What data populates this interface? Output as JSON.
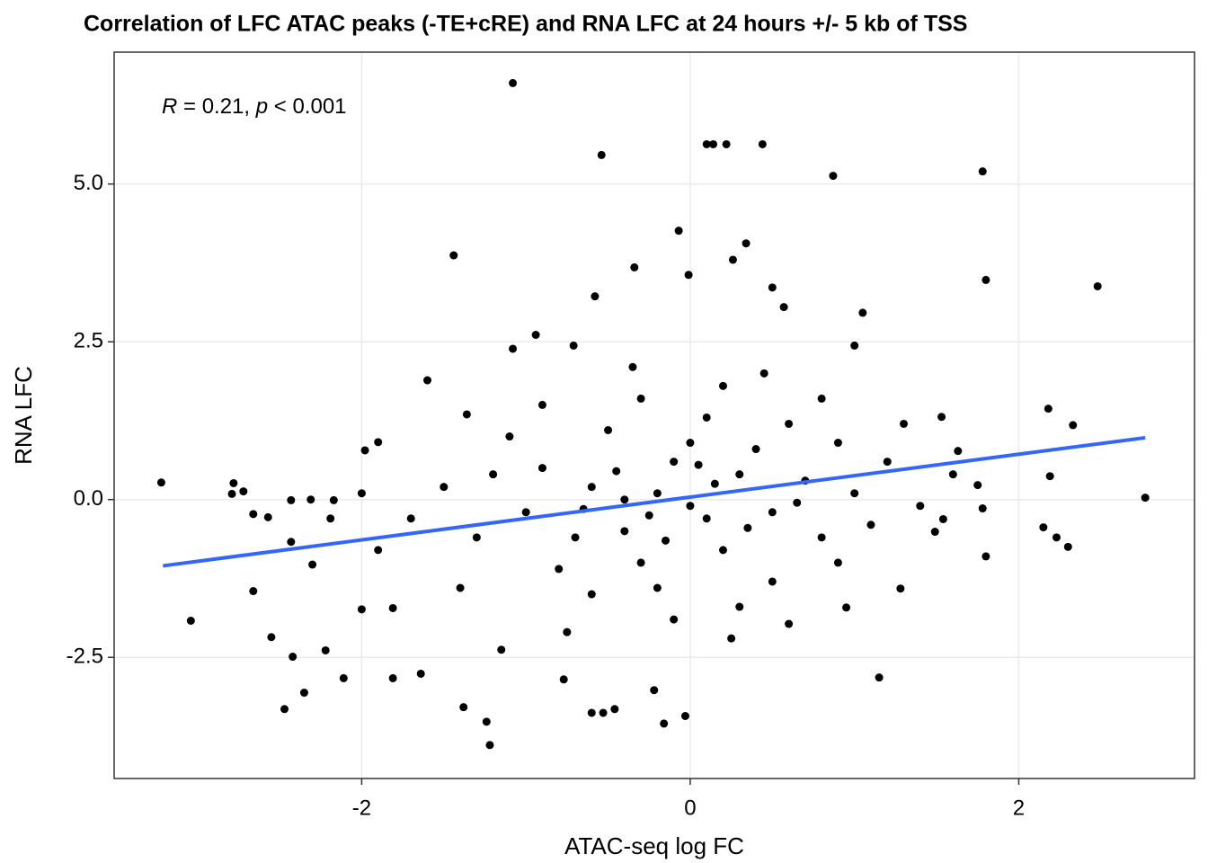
{
  "chart_data": {
    "type": "scatter",
    "title": "Correlation of LFC ATAC peaks (-TE+cRE) and RNA LFC at 24 hours +/- 5 kb of TSS",
    "x_label": "ATAC-seq log FC",
    "y_label": "RNA LFC",
    "annotation": [
      "R",
      " = 0.21, ",
      "p",
      " < 0.001"
    ],
    "color": "#000000",
    "grid": true,
    "xlim": [
      -3.507,
      3.07
    ],
    "ylim": [
      -4.42,
      7.09
    ],
    "xticks": [
      -2,
      0,
      2
    ],
    "yticks": [
      {
        "value": -2.5,
        "label": "-2.5"
      },
      {
        "value": 0,
        "label": "0.0"
      },
      {
        "value": 2.5,
        "label": "2.5"
      },
      {
        "value": 5,
        "label": "5.0"
      }
    ],
    "fit_line": {
      "x": [
        -3.21,
        2.77
      ],
      "y": [
        -1.05,
        0.98
      ],
      "color": "#3366ff"
    },
    "x": [
      -3.22,
      -3.04,
      -2.78,
      -2.79,
      -2.72,
      -2.66,
      -2.66,
      -2.57,
      -2.55,
      -2.47,
      -2.43,
      -2.43,
      -2.42,
      -2.35,
      -2.31,
      -2.3,
      -2.22,
      -2.19,
      -2.17,
      -2.11,
      -2.0,
      -1.98,
      -1.9,
      -1.81,
      -1.81,
      -1.64,
      -1.6,
      -1.44,
      -1.38,
      -1.36,
      -1.24,
      -1.22,
      -1.15,
      -1.08,
      -1.08,
      -0.94,
      -0.77,
      -0.71,
      -0.6,
      -0.58,
      -0.54,
      -0.53,
      -0.46,
      -0.34,
      -0.22,
      -0.16,
      -0.07,
      -0.03,
      -0.01,
      0.1,
      0.14,
      0.22,
      0.26,
      0.34,
      0.44,
      0.5,
      0.57,
      0.6,
      0.87,
      0.95,
      1.0,
      1.05,
      1.15,
      1.28,
      1.49,
      1.53,
      1.54,
      1.63,
      1.78,
      1.8,
      1.78,
      1.75,
      2.15,
      2.18,
      2.19,
      2.23,
      2.3,
      2.33,
      2.48,
      2.77,
      -0.2,
      0.1,
      -0.4,
      0.3,
      -0.1,
      0.2,
      -0.6,
      0.5,
      -0.3,
      0.0,
      0.4,
      -0.7,
      0.7,
      -0.9,
      0.8,
      -0.5,
      0.1,
      -0.2,
      0.6,
      -1.0,
      1.0,
      -1.2,
      1.1,
      -0.8,
      0.9,
      -1.3,
      1.2,
      -1.5,
      1.4,
      -0.3,
      0.2,
      -0.1,
      0.5,
      -0.6,
      0.3,
      -1.1,
      0.9,
      -1.7,
      1.6,
      -0.4,
      0.0,
      0.15,
      -0.25,
      0.35,
      -0.45,
      0.05,
      -0.15,
      0.65,
      -0.65,
      -1.9,
      1.8,
      -2.0,
      0.8,
      -0.9,
      -1.4,
      1.3,
      0.25,
      -0.35,
      0.45,
      -0.75
    ],
    "y": [
      0.27,
      -1.92,
      0.26,
      0.09,
      0.13,
      -1.45,
      -0.23,
      -0.28,
      -2.18,
      -3.32,
      -0.01,
      -0.67,
      -2.49,
      -3.06,
      0.0,
      -1.03,
      -2.39,
      -0.3,
      -0.01,
      -2.83,
      -1.74,
      0.78,
      0.91,
      -2.83,
      -1.72,
      -2.76,
      1.89,
      3.87,
      -3.29,
      1.35,
      -3.52,
      -3.89,
      -2.38,
      6.6,
      2.39,
      2.61,
      -2.85,
      2.44,
      -3.38,
      3.22,
      5.46,
      -3.38,
      -3.32,
      3.68,
      -3.02,
      -3.55,
      4.26,
      -3.43,
      3.56,
      5.63,
      5.63,
      5.63,
      3.8,
      4.06,
      5.63,
      3.36,
      3.05,
      -1.97,
      5.13,
      -1.71,
      2.44,
      2.96,
      -2.82,
      -1.41,
      -0.51,
      1.31,
      -0.31,
      0.77,
      5.2,
      3.48,
      -0.14,
      0.23,
      -0.44,
      1.44,
      0.37,
      -0.6,
      -0.75,
      1.18,
      3.38,
      0.03,
      0.1,
      -0.3,
      -0.5,
      0.4,
      0.6,
      -0.8,
      0.2,
      -0.2,
      -1.0,
      0.9,
      0.8,
      -0.6,
      0.3,
      0.5,
      -0.6,
      1.1,
      1.3,
      -1.4,
      1.2,
      -0.2,
      0.1,
      0.4,
      -0.4,
      -1.1,
      0.9,
      -0.6,
      0.6,
      0.2,
      -0.1,
      1.6,
      1.8,
      -1.9,
      -1.3,
      -1.5,
      -1.7,
      1.0,
      -1.0,
      -0.3,
      0.4,
      0.0,
      -0.1,
      0.25,
      -0.25,
      -0.45,
      0.45,
      0.55,
      -0.65,
      -0.05,
      -0.15,
      -0.8,
      -0.9,
      0.1,
      1.6,
      1.5,
      -1.4,
      1.2,
      -2.2,
      2.1,
      2.0,
      -2.1
    ]
  }
}
